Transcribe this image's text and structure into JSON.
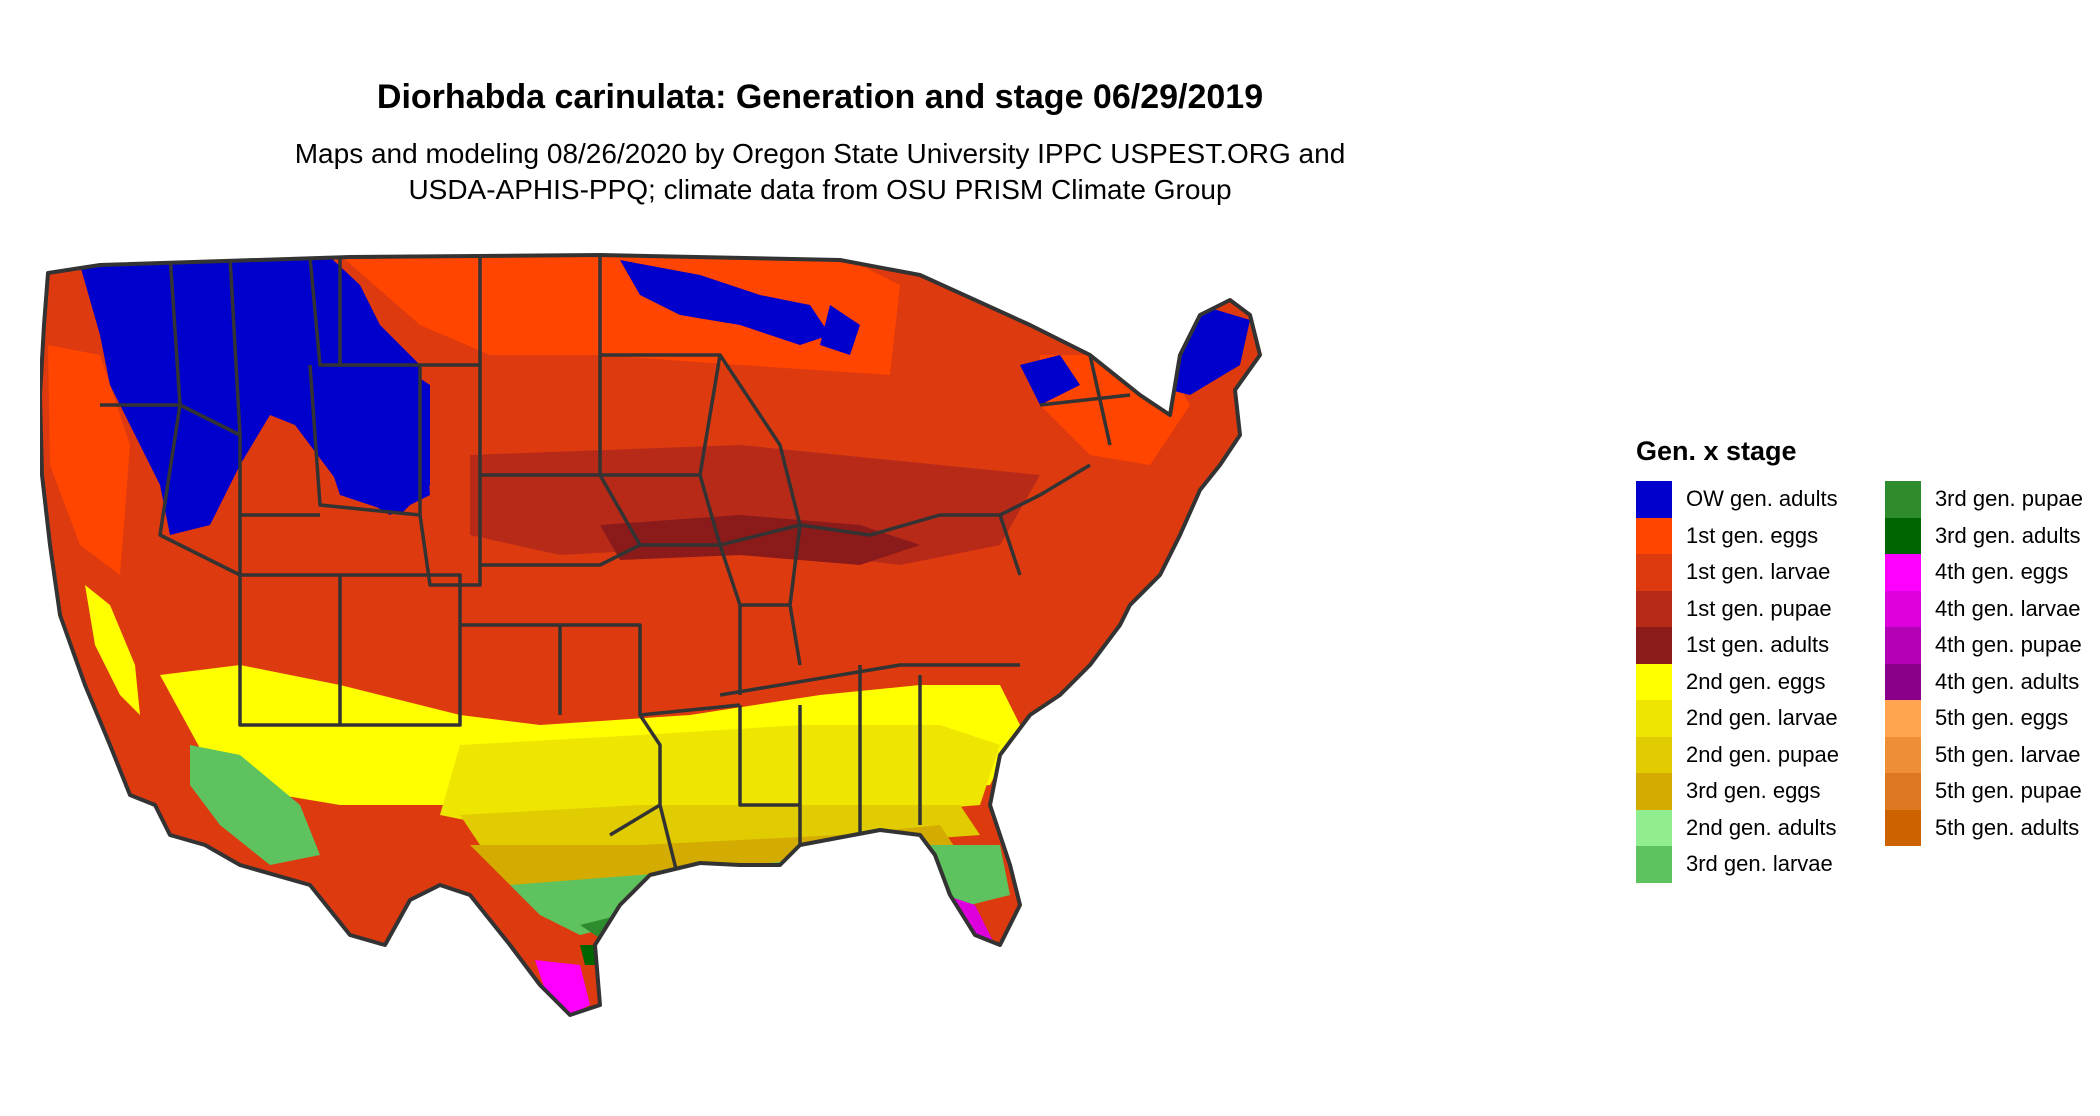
{
  "title": "Diorhabda carinulata: Generation and stage 06/29/2019",
  "subtitle_line1": "Maps and modeling 08/26/2020 by Oregon State University IPPC USPEST.ORG and",
  "subtitle_line2": "USDA-APHIS-PPQ; climate data from OSU PRISM Climate Group",
  "legend": {
    "title": "Gen. x stage",
    "col1": [
      {
        "label": "OW gen. adults",
        "color": "#0000cc"
      },
      {
        "label": "1st gen. eggs",
        "color": "#ff4500"
      },
      {
        "label": "1st gen. larvae",
        "color": "#dd3a10"
      },
      {
        "label": "1st gen. pupae",
        "color": "#b82a18"
      },
      {
        "label": "1st gen. adults",
        "color": "#8b1a1a"
      },
      {
        "label": "2nd gen. eggs",
        "color": "#ffff00"
      },
      {
        "label": "2nd gen. larvae",
        "color": "#eee600"
      },
      {
        "label": "2nd gen. pupae",
        "color": "#e0cc00"
      },
      {
        "label": "3rd gen. eggs",
        "color": "#d4ab00"
      },
      {
        "label": "2nd gen. adults",
        "color": "#90ee90"
      },
      {
        "label": "3rd gen. larvae",
        "color": "#5ec25e"
      }
    ],
    "col2": [
      {
        "label": "3rd gen. pupae",
        "color": "#2e8b2e"
      },
      {
        "label": "3rd gen. adults",
        "color": "#006400"
      },
      {
        "label": "4th gen. eggs",
        "color": "#ff00ff"
      },
      {
        "label": "4th gen. larvae",
        "color": "#dd00dd"
      },
      {
        "label": "4th gen. pupae",
        "color": "#b400b4"
      },
      {
        "label": "4th gen. adults",
        "color": "#8b008b"
      },
      {
        "label": "5th gen. eggs",
        "color": "#ffa54f"
      },
      {
        "label": "5th gen. larvae",
        "color": "#ee8e35"
      },
      {
        "label": "5th gen. pupae",
        "color": "#dd7820"
      },
      {
        "label": "5th gen. adults",
        "color": "#cc6300"
      }
    ]
  }
}
